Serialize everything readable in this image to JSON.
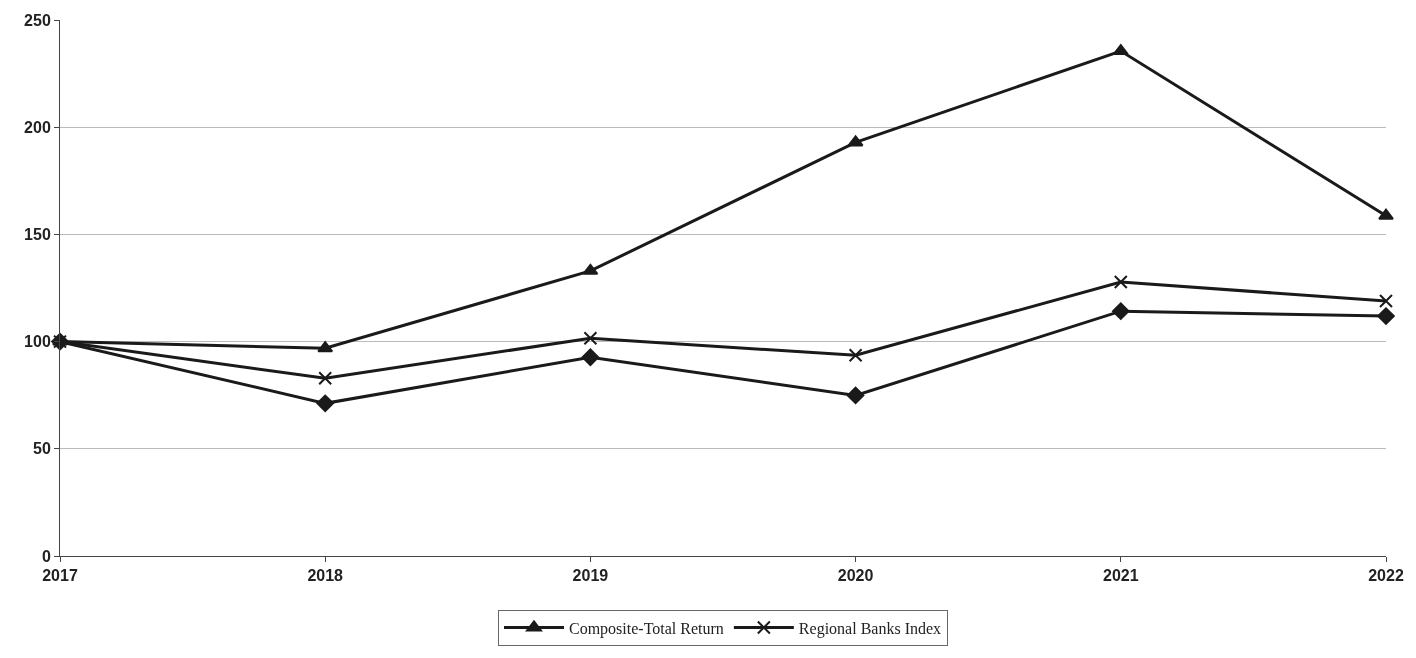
{
  "chart_data": {
    "type": "line",
    "x": [
      2017,
      2018,
      2019,
      2020,
      2021,
      2022
    ],
    "xlim": [
      2017,
      2022
    ],
    "xticks": [
      2017,
      2018,
      2019,
      2020,
      2021,
      2022
    ],
    "ylim": [
      0,
      250
    ],
    "yticks": [
      0,
      50,
      100,
      150,
      200,
      250
    ],
    "grid": "y",
    "legend": "bottom",
    "line_style": "solid",
    "series": [
      {
        "color": "#1a1a1a",
        "marker": "diamond",
        "values": [
          100,
          71.2,
          92.7,
          74.9,
          114.2,
          111.9
        ]
      },
      {
        "name": "Regional Banks Index",
        "color": "#1a1a1a",
        "marker": "cross",
        "values": [
          100,
          82.9,
          101.6,
          93.6,
          127.8,
          118.9
        ]
      },
      {
        "name": "Composite-Total Return",
        "color": "#1a1a1a",
        "marker": "triangle",
        "values": [
          100,
          96.9,
          133,
          192.9,
          235.5,
          158.7
        ]
      }
    ]
  }
}
